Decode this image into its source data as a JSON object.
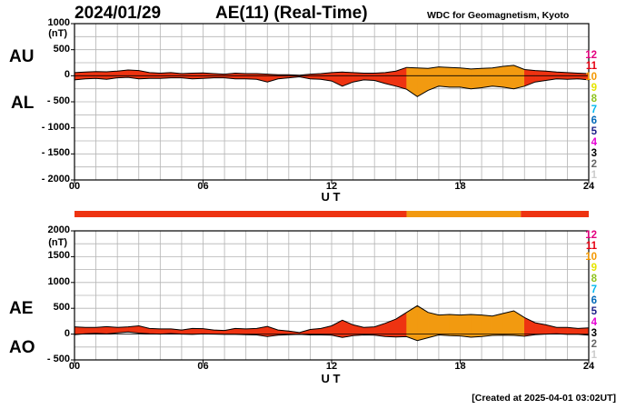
{
  "header": {
    "date": "2024/01/29",
    "title": "AE(11) (Real-Time)",
    "credit": "WDC for Geomagnetism, Kyoto"
  },
  "footer": {
    "created": "[Created at 2025-04-01 03:02UT]"
  },
  "colors": {
    "activity_red": "#ee3311",
    "activity_orange": "#f29a10",
    "grid": "#b4b4b4",
    "axis": "#000000"
  },
  "legend": [
    {
      "label": "12",
      "color": "#e4007f"
    },
    {
      "label": "11",
      "color": "#e60012"
    },
    {
      "label": "10",
      "color": "#f39800"
    },
    {
      "label": "9",
      "color": "#e5e500"
    },
    {
      "label": "8",
      "color": "#8fc31f"
    },
    {
      "label": "7",
      "color": "#00b7ee"
    },
    {
      "label": "6",
      "color": "#0068b7"
    },
    {
      "label": "5",
      "color": "#1d2088"
    },
    {
      "label": "4",
      "color": "#e600d4"
    },
    {
      "label": "3",
      "color": "#000000"
    },
    {
      "label": "2",
      "color": "#666666"
    },
    {
      "label": "1",
      "color": "#cccccc"
    }
  ],
  "activity_bar": [
    {
      "start": 0,
      "end": 15.5,
      "level": 11
    },
    {
      "start": 15.5,
      "end": 20.83,
      "level": 10
    },
    {
      "start": 20.83,
      "end": 24,
      "level": 11
    }
  ],
  "chart_data": [
    {
      "type": "area",
      "panel": "AU / AL",
      "series_labels": [
        "AU",
        "AL"
      ],
      "xlabel": "U T",
      "xlim": [
        0,
        24
      ],
      "xticks": [
        "00",
        "06",
        "12",
        "18",
        "24"
      ],
      "ylim": [
        -2000,
        1000
      ],
      "yunit": "(nT)",
      "yticks": [
        {
          "value": 1000,
          "label": "1000"
        },
        {
          "value": 500,
          "label": "500"
        },
        {
          "value": 0,
          "label": "0"
        },
        {
          "value": -500,
          "label": "- 500"
        },
        {
          "value": -1000,
          "label": "- 1000"
        },
        {
          "value": -1500,
          "label": "- 1500"
        },
        {
          "value": -2000,
          "label": "- 2000"
        }
      ],
      "x": [
        0,
        0.5,
        1,
        1.5,
        2,
        2.5,
        3,
        3.5,
        4,
        4.5,
        5,
        5.5,
        6,
        6.5,
        7,
        7.5,
        8,
        8.5,
        9,
        9.5,
        10,
        10.5,
        11,
        11.5,
        12,
        12.5,
        13,
        13.5,
        14,
        14.5,
        15,
        15.5,
        16,
        16.5,
        17,
        17.5,
        18,
        18.5,
        19,
        19.5,
        20,
        20.5,
        21,
        21.5,
        22,
        22.5,
        23,
        23.5,
        24
      ],
      "series": [
        {
          "name": "AU",
          "values": [
            60,
            70,
            80,
            75,
            90,
            110,
            100,
            60,
            50,
            60,
            40,
            50,
            55,
            40,
            30,
            50,
            40,
            40,
            30,
            20,
            20,
            10,
            30,
            40,
            60,
            70,
            60,
            50,
            50,
            60,
            90,
            160,
            150,
            140,
            170,
            160,
            150,
            130,
            140,
            150,
            180,
            200,
            120,
            100,
            90,
            70,
            60,
            50,
            40
          ]
        },
        {
          "name": "AL",
          "values": [
            -80,
            -60,
            -50,
            -70,
            -40,
            -30,
            -60,
            -50,
            -50,
            -40,
            -40,
            -60,
            -50,
            -40,
            -40,
            -60,
            -60,
            -70,
            -120,
            -60,
            -40,
            -20,
            -60,
            -70,
            -100,
            -200,
            -120,
            -80,
            -90,
            -150,
            -200,
            -260,
            -400,
            -280,
            -200,
            -220,
            -220,
            -250,
            -230,
            -200,
            -220,
            -250,
            -200,
            -120,
            -90,
            -60,
            -70,
            -60,
            -80
          ]
        }
      ]
    },
    {
      "type": "area",
      "panel": "AE / AO",
      "series_labels": [
        "AE",
        "AO"
      ],
      "xlabel": "U T",
      "xlim": [
        0,
        24
      ],
      "xticks": [
        "00",
        "06",
        "12",
        "18",
        "24"
      ],
      "ylim": [
        -500,
        2000
      ],
      "yunit": "(nT)",
      "yticks": [
        {
          "value": 2000,
          "label": "2000"
        },
        {
          "value": 1500,
          "label": "1500"
        },
        {
          "value": 1000,
          "label": "1000"
        },
        {
          "value": 500,
          "label": "500"
        },
        {
          "value": 0,
          "label": "0"
        },
        {
          "value": -500,
          "label": "- 500"
        }
      ],
      "x": [
        0,
        0.5,
        1,
        1.5,
        2,
        2.5,
        3,
        3.5,
        4,
        4.5,
        5,
        5.5,
        6,
        6.5,
        7,
        7.5,
        8,
        8.5,
        9,
        9.5,
        10,
        10.5,
        11,
        11.5,
        12,
        12.5,
        13,
        13.5,
        14,
        14.5,
        15,
        15.5,
        16,
        16.5,
        17,
        17.5,
        18,
        18.5,
        19,
        19.5,
        20,
        20.5,
        21,
        21.5,
        22,
        22.5,
        23,
        23.5,
        24
      ],
      "series": [
        {
          "name": "AE",
          "values": [
            140,
            130,
            130,
            145,
            130,
            140,
            160,
            110,
            100,
            100,
            80,
            110,
            105,
            80,
            70,
            110,
            100,
            110,
            150,
            80,
            60,
            30,
            90,
            110,
            160,
            270,
            180,
            130,
            140,
            210,
            290,
            420,
            550,
            420,
            370,
            380,
            370,
            380,
            370,
            350,
            400,
            450,
            320,
            220,
            180,
            130,
            130,
            110,
            120
          ]
        },
        {
          "name": "AO",
          "values": [
            -10,
            5,
            15,
            3,
            25,
            40,
            20,
            5,
            0,
            10,
            0,
            -5,
            3,
            0,
            -5,
            -5,
            -10,
            -15,
            -45,
            -20,
            -10,
            -5,
            -15,
            -15,
            -20,
            -65,
            -30,
            -15,
            -20,
            -45,
            -55,
            -50,
            -125,
            -70,
            -15,
            -30,
            -35,
            -60,
            -45,
            -25,
            -20,
            -25,
            -40,
            -10,
            0,
            5,
            -5,
            -5,
            -20
          ]
        }
      ]
    }
  ]
}
